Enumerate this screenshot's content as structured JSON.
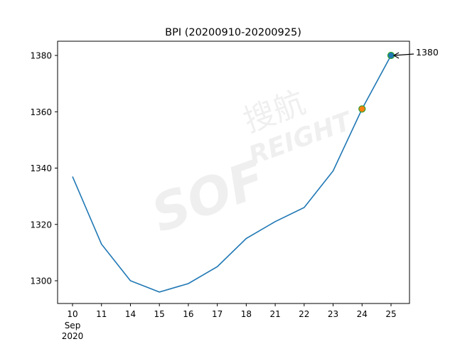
{
  "chart_data": {
    "type": "line",
    "title": "BPI (20200910-20200925)",
    "xlabel": "",
    "ylabel": "",
    "categories": [
      "10",
      "11",
      "14",
      "15",
      "16",
      "17",
      "18",
      "21",
      "22",
      "23",
      "24",
      "25"
    ],
    "x_sublabels": [
      "Sep",
      "2020"
    ],
    "values": [
      1337,
      1313,
      1300,
      1296,
      1299,
      1305,
      1315,
      1321,
      1326,
      1339,
      1361,
      1380
    ],
    "ylim": [
      1292,
      1385
    ],
    "yticks": [
      1300,
      1320,
      1340,
      1360,
      1380
    ],
    "grid": false,
    "line_color": "#1f77b4",
    "highlights": [
      {
        "category": "24",
        "value": 1361,
        "face": "#ff7f0e",
        "edge": "#2ca02c"
      },
      {
        "category": "25",
        "value": 1380,
        "face": "#1f77b4",
        "edge": "#2ca02c"
      }
    ],
    "annotation": {
      "text": "1380",
      "category": "25",
      "value": 1380
    },
    "watermark": "SOF 搜航 REIGHT"
  }
}
